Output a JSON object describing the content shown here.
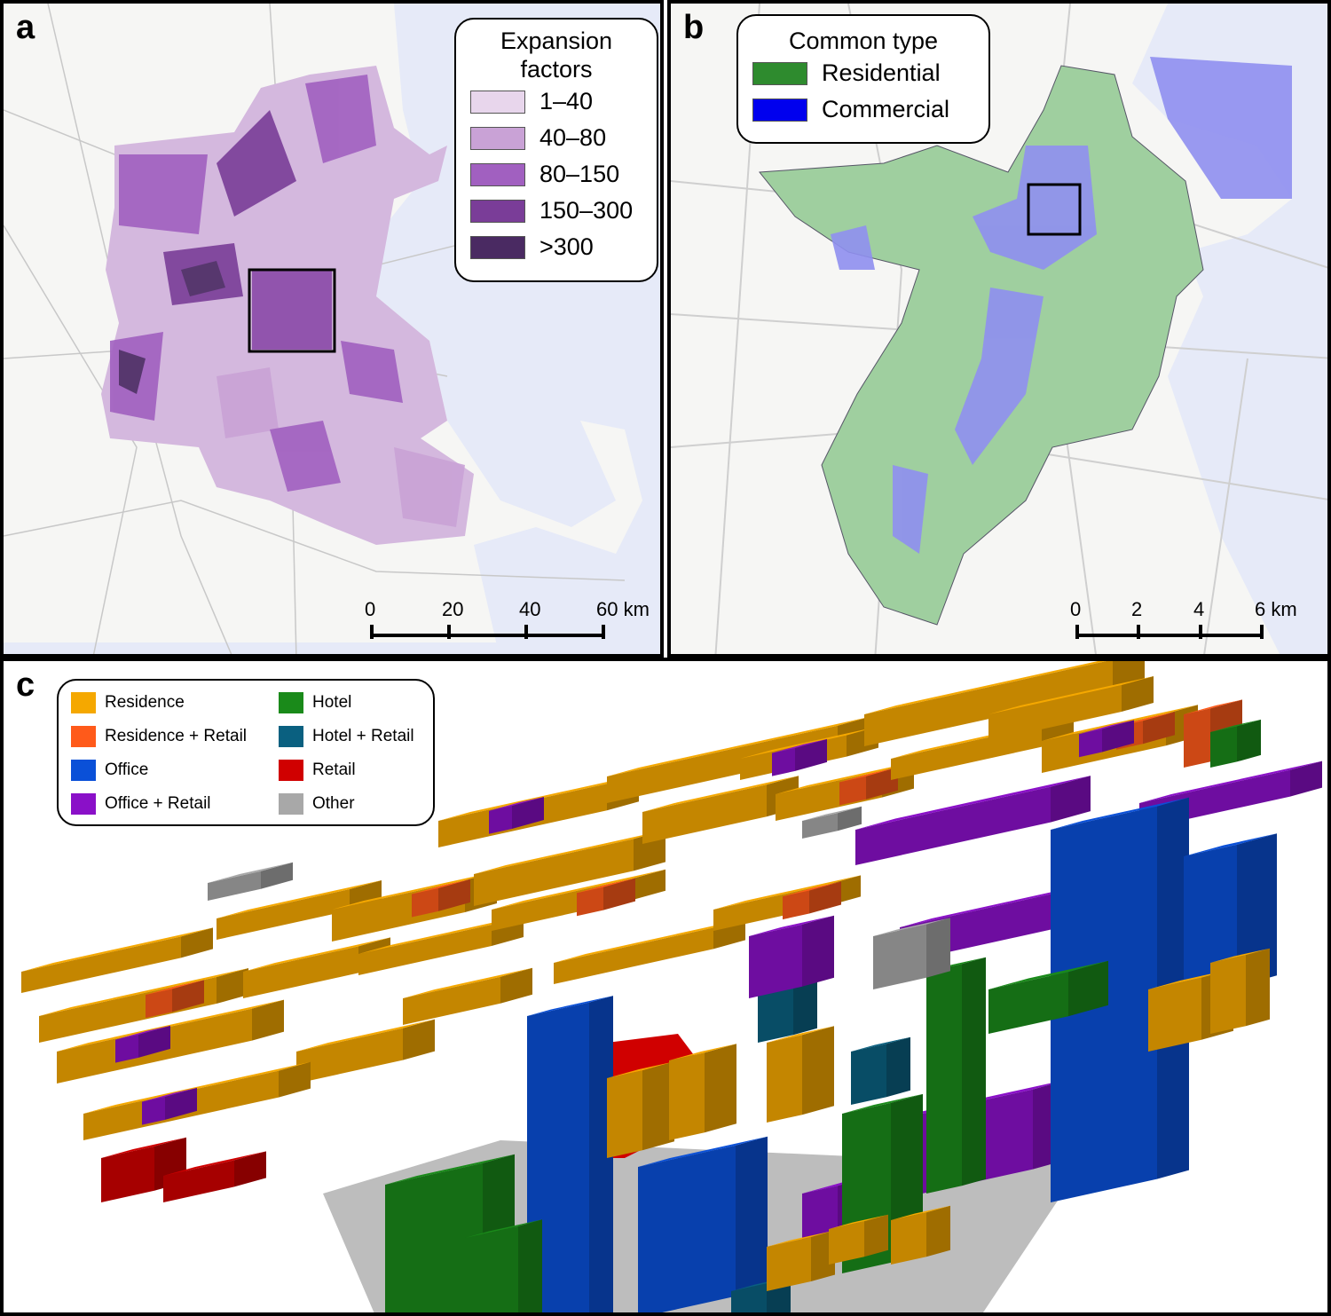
{
  "panels": [
    {
      "label": "a",
      "legend": {
        "title": "Expansion factors",
        "items": [
          {
            "name": "1–40",
            "color": "#e8d6ec"
          },
          {
            "name": "40–80",
            "color": "#c9a2d6"
          },
          {
            "name": "80–150",
            "color": "#a160c0"
          },
          {
            "name": "150–300",
            "color": "#7a3d98"
          },
          {
            "name": ">300",
            "color": "#4a2a62"
          }
        ]
      },
      "scale": [
        "0",
        "20",
        "40",
        "60 km"
      ]
    },
    {
      "label": "b",
      "legend": {
        "title": "Common type",
        "items": [
          {
            "name": "Residential",
            "color": "#2e8b2e"
          },
          {
            "name": "Commercial",
            "color": "#0000ee"
          }
        ]
      },
      "scale": [
        "0",
        "2",
        "4",
        "6 km"
      ]
    },
    {
      "label": "c",
      "legend": {
        "items": [
          {
            "name": "Residence",
            "color": "#f5a800"
          },
          {
            "name": "Residence + Retail",
            "color": "#ff5a1a"
          },
          {
            "name": "Office",
            "color": "#0a50d8"
          },
          {
            "name": "Office + Retail",
            "color": "#8a10c8"
          },
          {
            "name": "Hotel",
            "color": "#1a8a1a"
          },
          {
            "name": "Hotel + Retail",
            "color": "#0a6080"
          },
          {
            "name": "Retail",
            "color": "#d00000"
          },
          {
            "name": "Other",
            "color": "#a8a8a8"
          }
        ]
      }
    }
  ]
}
